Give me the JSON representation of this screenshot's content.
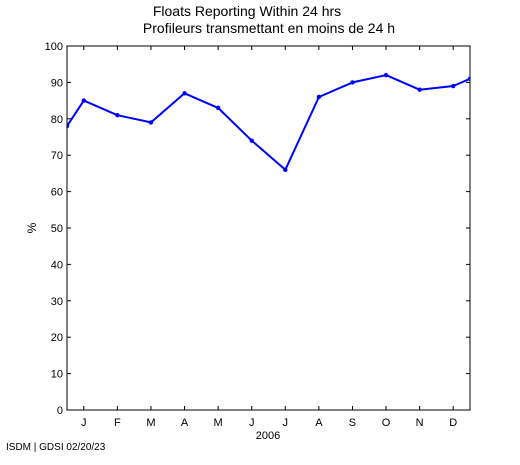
{
  "chart_data": {
    "type": "line",
    "title": "Floats Reporting Within 24 hrs",
    "subtitle": "Profileurs transmettant en moins de 24 h",
    "xlabel": "2006",
    "ylabel": "%",
    "ylim": [
      0,
      100
    ],
    "yticks": [
      0,
      10,
      20,
      30,
      40,
      50,
      60,
      70,
      80,
      90,
      100
    ],
    "xlim": [
      0.5,
      12.5
    ],
    "categories": [
      "J",
      "F",
      "M",
      "A",
      "M",
      "J",
      "J",
      "A",
      "S",
      "O",
      "N",
      "D"
    ],
    "series": [
      {
        "x": [
          0.5,
          1,
          2,
          3,
          4,
          5,
          6,
          7,
          8,
          9,
          10,
          11,
          12,
          12.5
        ],
        "values": [
          78,
          85,
          81,
          79,
          87,
          83,
          74,
          66,
          86,
          90,
          92,
          88,
          89,
          91
        ],
        "color": "#0000ff"
      }
    ],
    "grid": false,
    "legend": "none"
  },
  "footer": {
    "credit": "ISDM | GDSI 02/20/23"
  }
}
